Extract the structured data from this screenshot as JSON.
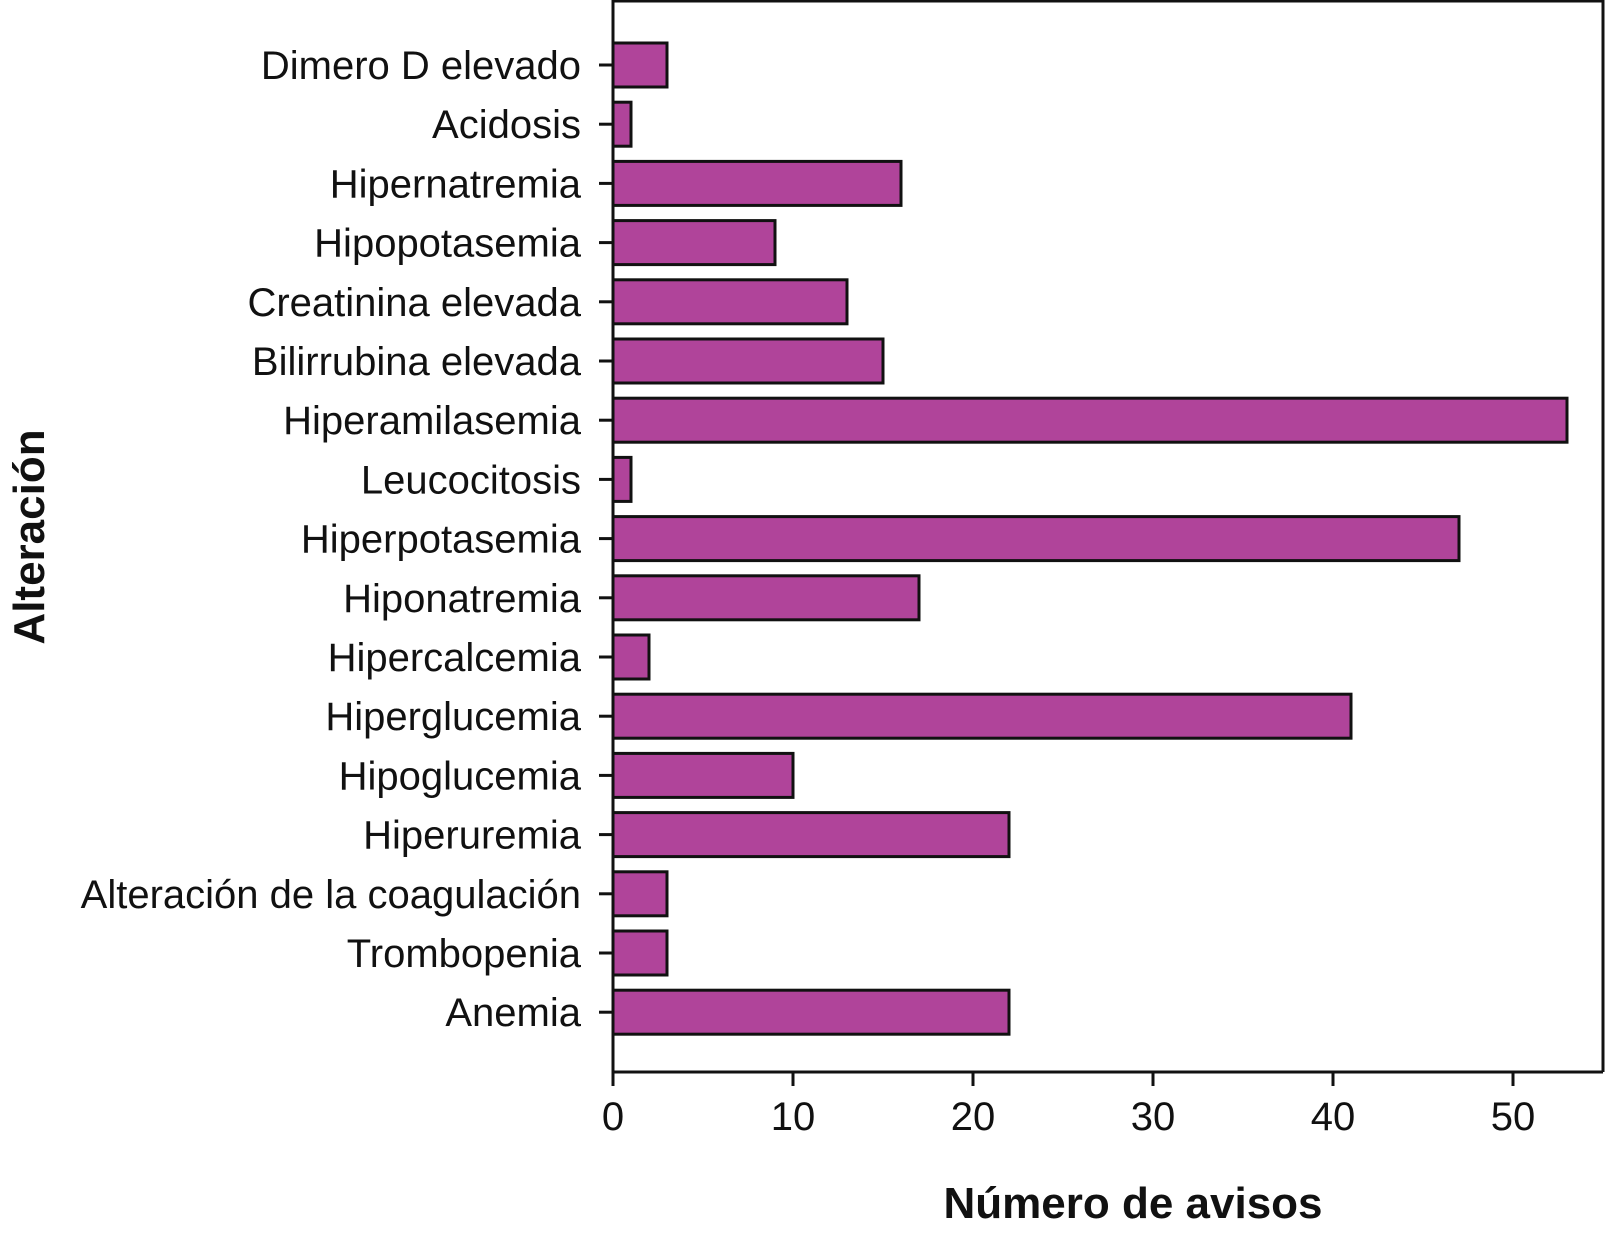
{
  "chart_data": {
    "type": "bar",
    "orientation": "horizontal",
    "title": "",
    "xlabel": "Número de avisos",
    "ylabel": "Alteración",
    "xlim": [
      0,
      55
    ],
    "xticks": [
      0,
      10,
      20,
      30,
      40,
      50
    ],
    "grid": false,
    "legend": "none",
    "bar_color": "#b0449a",
    "bar_edge_color": "#111111",
    "categories": [
      "Dimero D elevado",
      "Acidosis",
      "Hipernatremia",
      "Hipopotasemia",
      "Creatinina elevada",
      "Bilirrubina elevada",
      "Hiperamilasemia",
      "Leucocitosis",
      "Hiperpotasemia",
      "Hiponatremia",
      "Hipercalcemia",
      "Hiperglucemia",
      "Hipoglucemia",
      "Hiperuremia",
      "Alteración de la coagulación",
      "Trombopenia",
      "Anemia"
    ],
    "values": [
      3,
      1,
      16,
      9,
      13,
      15,
      53,
      1,
      47,
      17,
      2,
      41,
      10,
      22,
      3,
      3,
      22
    ]
  }
}
